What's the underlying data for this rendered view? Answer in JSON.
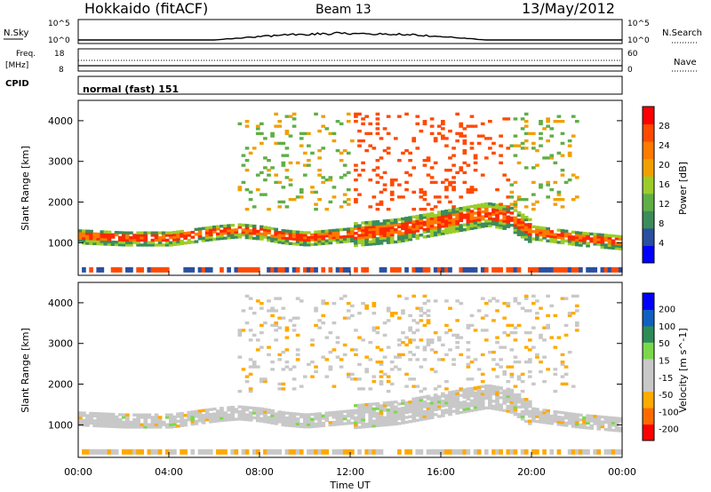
{
  "header": {
    "station": "Hokkaido (fitACF)",
    "beam": "Beam 13",
    "date": "13/May/2012"
  },
  "noise_panel": {
    "left_label": "N.Sky",
    "right_label": "N.Search",
    "left_ticks": [
      "10^5",
      "10^0"
    ],
    "right_ticks": [
      "10^5",
      "10^0"
    ]
  },
  "freq_panel": {
    "left_label_1": "Freq.",
    "left_label_2": "[MHz]",
    "right_label": "Nave",
    "left_ticks": [
      "18",
      "8"
    ],
    "right_ticks": [
      "60",
      "0"
    ]
  },
  "cpid_panel": {
    "label": "CPID",
    "value": "normal (fast) 151"
  },
  "colors": {
    "power": [
      "#0000ff",
      "#2a4fa0",
      "#3c8c5a",
      "#5fae46",
      "#9ccc2a",
      "#f0a000",
      "#ff7a00",
      "#ff4a00",
      "#ff0000"
    ],
    "velocity": [
      "#ff0000",
      "#ff6a00",
      "#ffaa00",
      "#c8c8c8",
      "#c8c8c8",
      "#7ad84a",
      "#2e8b57",
      "#1060c0",
      "#0000ff"
    ]
  },
  "chart_data": [
    {
      "type": "heatmap",
      "title": "",
      "ylabel": "Slant Range [km]",
      "colorbar_label": "Power [dB]",
      "colorbar_ticks": [
        "28",
        "24",
        "20",
        "16",
        "12",
        "8",
        "4"
      ],
      "colorbar_range": [
        0,
        32
      ],
      "xlim": [
        "00:00",
        "24:00"
      ],
      "ylim": [
        200,
        4500
      ],
      "y_ticks": [
        "4000",
        "3000",
        "2000",
        "1000"
      ],
      "y_tick_values": [
        4000,
        3000,
        2000,
        1000
      ],
      "echo_bands": [
        {
          "description_points_hours": [
            0,
            2,
            4,
            6,
            7,
            8,
            9,
            10,
            12,
            14,
            16,
            18,
            19,
            20,
            22,
            24
          ],
          "range_km": [
            1150,
            1100,
            1100,
            1250,
            1300,
            1250,
            1150,
            1100,
            1200,
            1300,
            1500,
            1700,
            1600,
            1250,
            1100,
            1000
          ],
          "power_db": 26
        }
      ]
    },
    {
      "type": "heatmap",
      "title": "",
      "ylabel": "Slant Range [km]",
      "colorbar_label": "Velocity [m s^-1]",
      "colorbar_ticks": [
        "200",
        "100",
        "50",
        "15",
        "-15",
        "-50",
        "-100",
        "-200"
      ],
      "colorbar_range": [
        -250,
        250
      ],
      "xlim": [
        "00:00",
        "24:00"
      ],
      "ylim": [
        200,
        4500
      ],
      "y_ticks": [
        "4000",
        "3000",
        "2000",
        "1000"
      ],
      "y_tick_values": [
        4000,
        3000,
        2000,
        1000
      ]
    }
  ],
  "x_axis": {
    "label": "Time UT",
    "ticks": [
      "00:00",
      "04:00",
      "08:00",
      "12:00",
      "16:00",
      "20:00",
      "00:00"
    ]
  }
}
